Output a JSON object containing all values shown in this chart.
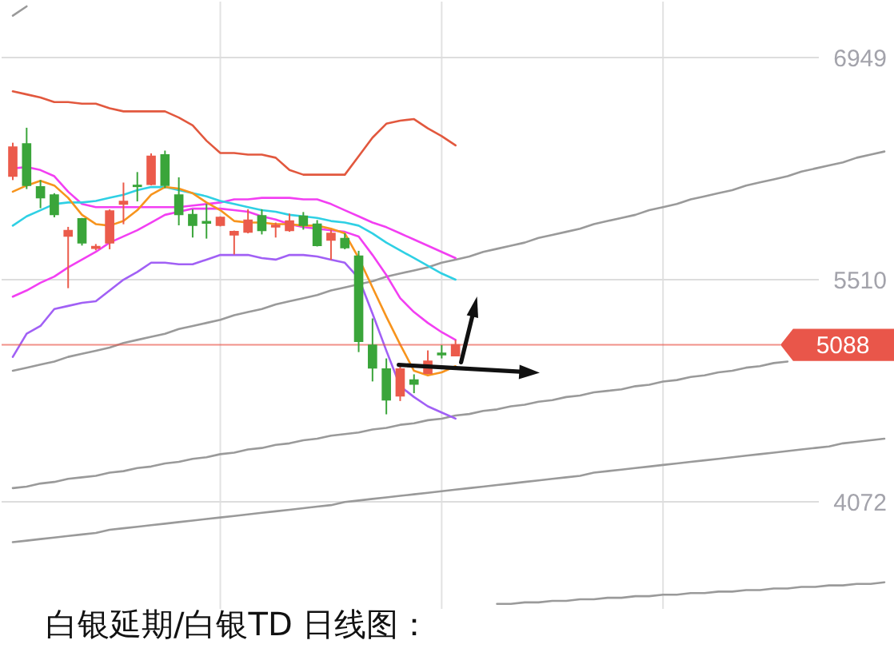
{
  "chart_data": {
    "type": "candlestick",
    "title": "白银延期/白银TD 日线图：",
    "categories": [
      null,
      null,
      null,
      null,
      null,
      null,
      null,
      null,
      null,
      null,
      null,
      null,
      null,
      null,
      null,
      null,
      null,
      null,
      null,
      null,
      null,
      null,
      null,
      null,
      null,
      null,
      null,
      null,
      null,
      null,
      null,
      null,
      null,
      null,
      null,
      null,
      null,
      null,
      null,
      null,
      null,
      null,
      null,
      null,
      null,
      null,
      null,
      null,
      null,
      null,
      null,
      null,
      null,
      null,
      null,
      null,
      null,
      null,
      null,
      null,
      null,
      null,
      null,
      null
    ],
    "ohlc": [
      [
        6180,
        6397,
        6155,
        6369
      ],
      [
        6390,
        6494,
        6097,
        6121
      ],
      [
        6111,
        6155,
        5973,
        6041
      ],
      [
        6059,
        6070,
        5914,
        5932
      ],
      [
        5793,
        5852,
        5455,
        5828
      ],
      [
        5904,
        5910,
        5731,
        5748
      ],
      [
        5714,
        5741,
        5700,
        5725
      ],
      [
        5748,
        5965,
        5707,
        5955
      ],
      [
        6000,
        6139,
        5869,
        6017
      ],
      [
        6121,
        6207,
        6017,
        6114
      ],
      [
        6128,
        6328,
        6121,
        6310
      ],
      [
        6318,
        6346,
        6103,
        6121
      ],
      [
        6059,
        6173,
        5862,
        5932
      ],
      [
        5932,
        5966,
        5783,
        5862
      ],
      [
        5886,
        6000,
        5776,
        5876
      ],
      [
        5862,
        5920,
        5855,
        5914
      ],
      [
        5800,
        5828,
        5673,
        5821
      ],
      [
        5818,
        5966,
        5810,
        5896
      ],
      [
        5924,
        5966,
        5803,
        5828
      ],
      [
        5852,
        5880,
        5783,
        5862
      ],
      [
        5828,
        5938,
        5820,
        5890
      ],
      [
        5921,
        5948,
        5834,
        5862
      ],
      [
        5870,
        5896,
        5725,
        5731
      ],
      [
        5766,
        5834,
        5638,
        5810
      ],
      [
        5776,
        5810,
        5707,
        5717
      ],
      [
        5662,
        5697,
        5041,
        5110
      ],
      [
        5086,
        5259,
        4851,
        4938
      ],
      [
        4931,
        5000,
        4638,
        4731
      ],
      [
        4758,
        4965,
        4724,
        4931
      ],
      [
        4861,
        4897,
        4775,
        4834
      ],
      [
        4903,
        5052,
        4897,
        4982
      ],
      [
        5034,
        5086,
        5000,
        5024
      ],
      [
        5017,
        5120,
        5017,
        5088
      ],
      null,
      null,
      null,
      null,
      null,
      null,
      null,
      null,
      null,
      null,
      null,
      null,
      null,
      null,
      null,
      null,
      null,
      null,
      null,
      null,
      null,
      null,
      null,
      null,
      null,
      null,
      null,
      null,
      null,
      null,
      null
    ],
    "colors": [
      "#eb5b4b",
      "#3aa53a",
      "#3aa53a",
      "#3aa53a",
      "#eb5b4b",
      "#3aa53a",
      "#eb5b4b",
      "#eb5b4b",
      "#eb5b4b",
      "#3aa53a",
      "#eb5b4b",
      "#3aa53a",
      "#3aa53a",
      "#3aa53a",
      "#3aa53a",
      "#eb5b4b",
      "#eb5b4b",
      "#eb5b4b",
      "#3aa53a",
      "#eb5b4b",
      "#eb5b4b",
      "#3aa53a",
      "#3aa53a",
      "#eb5b4b",
      "#3aa53a",
      "#3aa53a",
      "#3aa53a",
      "#3aa53a",
      "#eb5b4b",
      "#3aa53a",
      "#eb5b4b",
      "#3aa53a",
      "#eb5b4b",
      null,
      null,
      null,
      null,
      null,
      null,
      null,
      null,
      null,
      null,
      null,
      null,
      null,
      null,
      null,
      null,
      null,
      null,
      null,
      null,
      null,
      null,
      null,
      null,
      null,
      null,
      null,
      null,
      null,
      null,
      null
    ],
    "series": [
      {
        "type": "line",
        "color": "#9a9a9a",
        "values": [
          7220,
          7280,
          null,
          null,
          null,
          null,
          null,
          null,
          null,
          null,
          null,
          null,
          null,
          null,
          null,
          null,
          null,
          null,
          null,
          null,
          null,
          null,
          null,
          null,
          null,
          null,
          null,
          null,
          null,
          null,
          null,
          null,
          null,
          null,
          null,
          null,
          null,
          null,
          null,
          null,
          null,
          null,
          null,
          null,
          null,
          null,
          null,
          null,
          null,
          null,
          null,
          null,
          null,
          null,
          null,
          null,
          null,
          null,
          null,
          null,
          null,
          null,
          null,
          null
        ]
      },
      {
        "type": "line",
        "color": "#9a9a9a",
        "values": [
          4920,
          4940,
          4960,
          4980,
          5010,
          5030,
          5050,
          5070,
          5100,
          5120,
          5140,
          5160,
          5190,
          5210,
          5230,
          5250,
          5280,
          5300,
          5320,
          5350,
          5370,
          5390,
          5410,
          5440,
          5460,
          5480,
          5500,
          5530,
          5550,
          5570,
          5590,
          5620,
          5640,
          5660,
          5690,
          5710,
          5730,
          5750,
          5780,
          5800,
          5820,
          5840,
          5870,
          5890,
          5910,
          5930,
          5960,
          5980,
          6000,
          6030,
          6050,
          6070,
          6090,
          6120,
          6140,
          6160,
          6180,
          6210,
          6230,
          6250,
          6270,
          6300,
          6320,
          6340
        ]
      },
      {
        "type": "line",
        "color": "#9a9a9a",
        "values": [
          4160,
          4170,
          4190,
          4200,
          4220,
          4230,
          4240,
          4260,
          4270,
          4290,
          4300,
          4320,
          4330,
          4350,
          4360,
          4380,
          4390,
          4410,
          4420,
          4440,
          4450,
          4470,
          4480,
          4500,
          4510,
          4520,
          4540,
          4550,
          4570,
          4580,
          4600,
          4610,
          4630,
          4640,
          4660,
          4670,
          4690,
          4700,
          4720,
          4730,
          4750,
          4760,
          4780,
          4790,
          4800,
          4820,
          4830,
          4850,
          4860,
          4880,
          4890,
          4910,
          4920,
          4940,
          4950,
          4970,
          4980,
          null,
          null,
          null,
          null,
          null,
          null,
          null
        ]
      },
      {
        "type": "line",
        "color": "#9a9a9a",
        "values": [
          3810,
          3820,
          3830,
          3840,
          3850,
          3860,
          3870,
          3890,
          3900,
          3910,
          3920,
          3930,
          3940,
          3950,
          3960,
          3970,
          3980,
          3990,
          4000,
          4010,
          4020,
          4030,
          4040,
          4050,
          4070,
          4080,
          4090,
          4100,
          4110,
          4120,
          4130,
          4140,
          4150,
          4160,
          4170,
          4180,
          4190,
          4200,
          4210,
          4220,
          4230,
          4240,
          4260,
          4270,
          4280,
          4290,
          4300,
          4310,
          4320,
          4330,
          4340,
          4350,
          4360,
          4370,
          4380,
          4390,
          4400,
          4410,
          4420,
          4430,
          4450,
          4460,
          4470,
          4480
        ]
      },
      {
        "type": "line",
        "color": "#9a9a9a",
        "values": [
          null,
          null,
          null,
          null,
          null,
          null,
          null,
          null,
          null,
          null,
          null,
          null,
          null,
          null,
          null,
          null,
          null,
          null,
          null,
          null,
          null,
          null,
          null,
          null,
          null,
          null,
          null,
          null,
          null,
          null,
          null,
          null,
          null,
          null,
          null,
          3410,
          3410,
          3420,
          3420,
          3430,
          3430,
          3440,
          3440,
          3450,
          3450,
          3460,
          3460,
          3470,
          3470,
          3480,
          3480,
          3490,
          3490,
          3500,
          3500,
          3510,
          3510,
          3520,
          3520,
          3530,
          3530,
          3540,
          3540,
          3550
        ]
      },
      {
        "type": "line",
        "color": "#e2583e",
        "values": [
          6730,
          6710,
          6690,
          6660,
          6660,
          6650,
          6650,
          6620,
          6600,
          6600,
          6600,
          6600,
          6560,
          6510,
          6410,
          6330,
          6330,
          6320,
          6320,
          6300,
          6220,
          6190,
          6190,
          6190,
          6190,
          6310,
          6430,
          6520,
          6540,
          6550,
          6490,
          6440,
          6380,
          null,
          null,
          null,
          null,
          null,
          null,
          null,
          null,
          null,
          null,
          null,
          null,
          null,
          null,
          null,
          null,
          null,
          null,
          null,
          null,
          null,
          null,
          null,
          null,
          null,
          null,
          null,
          null,
          null,
          null,
          null
        ]
      },
      {
        "type": "line",
        "color": "#f23ff2",
        "values": [
          6230,
          6240,
          6220,
          6180,
          6080,
          6000,
          5980,
          5980,
          5980,
          5980,
          5980,
          5980,
          5980,
          5990,
          6000,
          6010,
          6030,
          6030,
          6040,
          6040,
          6040,
          6030,
          6030,
          6000,
          5960,
          5920,
          5880,
          5850,
          5810,
          5770,
          5730,
          5690,
          5650,
          null,
          null,
          null,
          null,
          null,
          null,
          null,
          null,
          null,
          null,
          null,
          null,
          null,
          null,
          null,
          null,
          null,
          null,
          null,
          null,
          null,
          null,
          null,
          null,
          null,
          null,
          null,
          null,
          null,
          null,
          null
        ]
      },
      {
        "type": "line",
        "color": "#f23ff2",
        "values": [
          5400,
          5440,
          5490,
          5530,
          5590,
          5640,
          5690,
          5750,
          5790,
          5830,
          5880,
          5930,
          5950,
          5970,
          5970,
          5970,
          5960,
          5950,
          5920,
          5900,
          5870,
          5850,
          5840,
          5830,
          5820,
          5790,
          5670,
          5540,
          5390,
          5300,
          5230,
          5170,
          5120,
          null,
          null,
          null,
          null,
          null,
          null,
          null,
          null,
          null,
          null,
          null,
          null,
          null,
          null,
          null,
          null,
          null,
          null,
          null,
          null,
          null,
          null,
          null,
          null,
          null,
          null,
          null,
          null,
          null,
          null,
          null
        ]
      },
      {
        "type": "line",
        "color": "#2fd0e4",
        "values": [
          5860,
          5920,
          5960,
          6000,
          6010,
          6010,
          6020,
          6040,
          6060,
          6090,
          6110,
          6110,
          6090,
          6070,
          6050,
          6020,
          6000,
          5980,
          5960,
          5950,
          5930,
          5920,
          5910,
          5890,
          5880,
          5860,
          5810,
          5750,
          5700,
          5650,
          5600,
          5550,
          5510,
          null,
          null,
          null,
          null,
          null,
          null,
          null,
          null,
          null,
          null,
          null,
          null,
          null,
          null,
          null,
          null,
          null,
          null,
          null,
          null,
          null,
          null,
          null,
          null,
          null,
          null,
          null,
          null,
          null,
          null,
          null
        ]
      },
      {
        "type": "line",
        "color": "#a160f5",
        "values": [
          5010,
          5160,
          5210,
          5320,
          5340,
          5360,
          5370,
          5440,
          5510,
          5560,
          5620,
          5620,
          5610,
          5610,
          5640,
          5670,
          5670,
          5670,
          5650,
          5640,
          5670,
          5670,
          5660,
          5640,
          5620,
          5520,
          5290,
          5050,
          4820,
          4750,
          4690,
          4650,
          4610,
          null,
          null,
          null,
          null,
          null,
          null,
          null,
          null,
          null,
          null,
          null,
          null,
          null,
          null,
          null,
          null,
          null,
          null,
          null,
          null,
          null,
          null,
          null,
          null,
          null,
          null,
          null,
          null,
          null,
          null,
          null
        ]
      },
      {
        "type": "line",
        "color": "#f7941d",
        "values": [
          6080,
          6120,
          6150,
          6120,
          6040,
          5930,
          5870,
          5860,
          5890,
          5960,
          6060,
          6110,
          6100,
          6070,
          6010,
          5960,
          5890,
          5880,
          5880,
          5870,
          5870,
          5860,
          5860,
          5840,
          5810,
          5650,
          5460,
          5270,
          5090,
          4920,
          4890,
          4910,
          4950,
          null,
          null,
          null,
          null,
          null,
          null,
          null,
          null,
          null,
          null,
          null,
          null,
          null,
          null,
          null,
          null,
          null,
          null,
          null,
          null,
          null,
          null,
          null,
          null,
          null,
          null,
          null,
          null,
          null,
          null,
          null
        ]
      }
    ],
    "ylim": [
      3378,
      7311
    ],
    "yticks": [
      4072,
      5510,
      6949
    ],
    "grid": true,
    "tick_labels": "y",
    "ref_lines": [
      {
        "axis": "y",
        "value": 5088,
        "label": "5088",
        "color": "#e9564a"
      }
    ]
  }
}
